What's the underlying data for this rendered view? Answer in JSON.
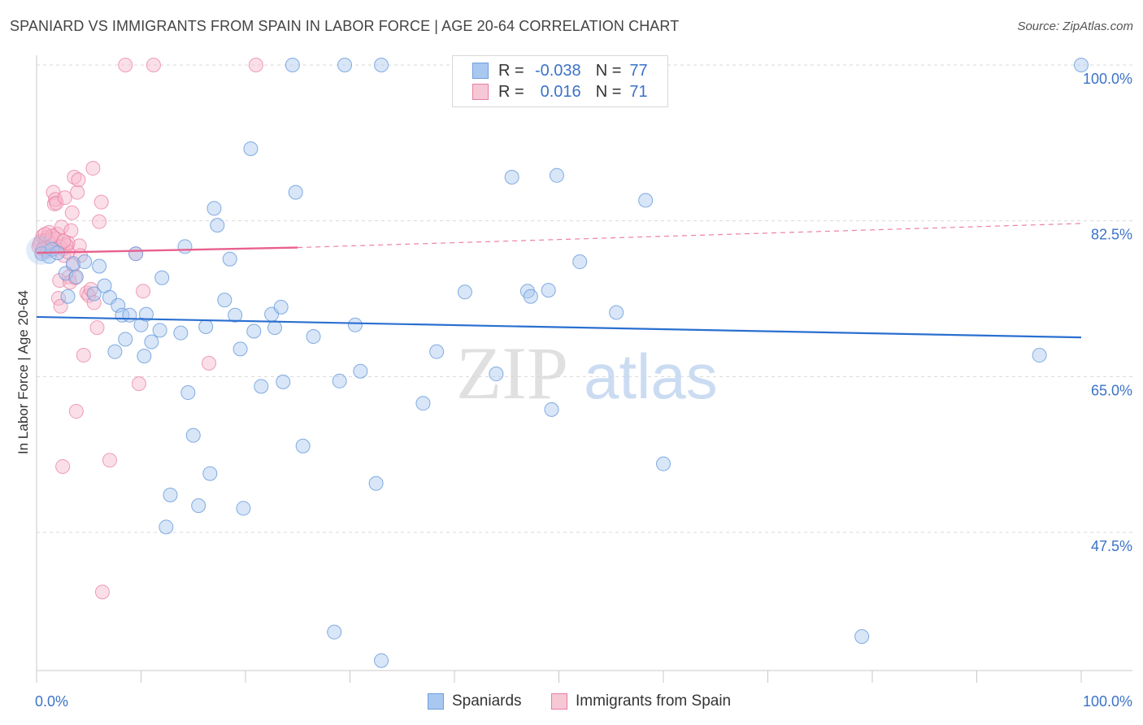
{
  "title": "SPANIARD VS IMMIGRANTS FROM SPAIN IN LABOR FORCE | AGE 20-64 CORRELATION CHART",
  "source": "Source: ZipAtlas.com",
  "watermark": {
    "zip": "ZIP",
    "atlas": "atlas"
  },
  "legend": {
    "rows": [
      {
        "r_label": "R =",
        "r_value": "-0.038",
        "n_label": "N =",
        "n_value": "77"
      },
      {
        "r_label": "R =",
        "r_value": "0.016",
        "n_label": "N =",
        "n_value": "71"
      }
    ]
  },
  "bottom_legend": {
    "series1": "Spaniards",
    "series2": "Immigrants from Spain"
  },
  "colors": {
    "blue_fill": "#a9c8f0",
    "blue_stroke": "#6d9fdc",
    "blue_line": "#2a6fd0",
    "pink_fill": "#f6b8cb",
    "pink_stroke": "#e97fa1",
    "pink_line": "#e8608e",
    "axis_label": "#3b73c8",
    "grid": "#d9d9d9"
  },
  "chart_data": {
    "type": "scatter",
    "title": "SPANIARD VS IMMIGRANTS FROM SPAIN IN LABOR FORCE | AGE 20-64 CORRELATION CHART",
    "xlabel": "",
    "ylabel": "In Labor Force | Age 20-64",
    "xlim": [
      0,
      100
    ],
    "ylim": [
      29.5,
      101.5
    ],
    "x_tick_labels": [
      {
        "value": 0,
        "label": "0.0%"
      },
      {
        "value": 100,
        "label": "100.0%"
      }
    ],
    "y_tick_labels": [
      {
        "value": 100,
        "label": "100.0%"
      },
      {
        "value": 82.5,
        "label": "82.5%"
      },
      {
        "value": 65,
        "label": "65.0%"
      },
      {
        "value": 47.5,
        "label": "47.5%"
      }
    ],
    "series": [
      {
        "name": "Spaniards",
        "r": -0.038,
        "n": 77,
        "trend": {
          "x": [
            0,
            100
          ],
          "y": [
            71.7,
            69.4
          ]
        },
        "points": [
          [
            0.5,
            78.8
          ],
          [
            1.2,
            78.5
          ],
          [
            1.5,
            79.3
          ],
          [
            2.0,
            78.9
          ],
          [
            2.8,
            76.6
          ],
          [
            3.0,
            74.0
          ],
          [
            3.5,
            77.7
          ],
          [
            3.8,
            76.2
          ],
          [
            4.6,
            77.9
          ],
          [
            5.5,
            74.3
          ],
          [
            6.0,
            77.4
          ],
          [
            6.5,
            75.2
          ],
          [
            7.0,
            73.9
          ],
          [
            7.5,
            67.8
          ],
          [
            7.8,
            73.0
          ],
          [
            8.2,
            71.9
          ],
          [
            8.5,
            69.2
          ],
          [
            8.9,
            71.9
          ],
          [
            9.5,
            78.8
          ],
          [
            10.0,
            70.8
          ],
          [
            10.3,
            67.3
          ],
          [
            10.5,
            72.0
          ],
          [
            11.0,
            68.9
          ],
          [
            11.8,
            70.2
          ],
          [
            12.0,
            76.1
          ],
          [
            12.4,
            48.1
          ],
          [
            12.8,
            51.7
          ],
          [
            13.8,
            69.9
          ],
          [
            14.2,
            79.6
          ],
          [
            14.5,
            63.2
          ],
          [
            15.0,
            58.4
          ],
          [
            15.5,
            50.5
          ],
          [
            16.2,
            70.6
          ],
          [
            16.6,
            54.1
          ],
          [
            17.0,
            83.9
          ],
          [
            17.3,
            82.0
          ],
          [
            18.0,
            73.6
          ],
          [
            18.5,
            78.2
          ],
          [
            19.0,
            71.9
          ],
          [
            19.5,
            68.1
          ],
          [
            19.8,
            50.2
          ],
          [
            20.5,
            90.6
          ],
          [
            20.8,
            70.1
          ],
          [
            21.5,
            63.9
          ],
          [
            22.5,
            72.0
          ],
          [
            22.8,
            70.5
          ],
          [
            23.4,
            72.8
          ],
          [
            23.6,
            64.4
          ],
          [
            24.8,
            85.7
          ],
          [
            25.5,
            57.2
          ],
          [
            26.5,
            69.5
          ],
          [
            28.5,
            36.3
          ],
          [
            29.0,
            64.5
          ],
          [
            30.5,
            70.8
          ],
          [
            31.0,
            65.6
          ],
          [
            32.5,
            53.0
          ],
          [
            33.0,
            33.1
          ],
          [
            37.0,
            62.0
          ],
          [
            38.3,
            67.8
          ],
          [
            41.0,
            74.5
          ],
          [
            44.0,
            65.3
          ],
          [
            45.5,
            87.4
          ],
          [
            47.0,
            74.6
          ],
          [
            47.3,
            74.0
          ],
          [
            49.0,
            74.7
          ],
          [
            49.3,
            61.3
          ],
          [
            49.8,
            87.6
          ],
          [
            52.0,
            77.9
          ],
          [
            55.5,
            72.2
          ],
          [
            58.3,
            84.8
          ],
          [
            60.0,
            55.2
          ],
          [
            79.0,
            35.8
          ],
          [
            96.0,
            67.4
          ],
          [
            100.0,
            100.0
          ],
          [
            24.5,
            100.0
          ],
          [
            29.5,
            100.0
          ],
          [
            33.0,
            100.0
          ]
        ]
      },
      {
        "name": "Immigrants from Spain",
        "r": 0.016,
        "n": 71,
        "trend": {
          "x": [
            0,
            25
          ],
          "y": [
            78.9,
            79.5
          ]
        },
        "trend_extension": {
          "x": [
            25,
            100
          ],
          "y": [
            79.5,
            82.2
          ]
        },
        "points": [
          [
            0.2,
            79.6
          ],
          [
            0.4,
            80.2
          ],
          [
            0.5,
            79.0
          ],
          [
            0.6,
            80.8
          ],
          [
            0.7,
            79.4
          ],
          [
            0.8,
            80.0
          ],
          [
            0.9,
            79.2
          ],
          [
            1.0,
            80.6
          ],
          [
            1.1,
            79.8
          ],
          [
            1.2,
            81.2
          ],
          [
            1.3,
            79.5
          ],
          [
            1.4,
            80.4
          ],
          [
            1.5,
            79.9
          ],
          [
            1.6,
            85.7
          ],
          [
            1.7,
            84.4
          ],
          [
            1.8,
            84.9
          ],
          [
            1.9,
            84.5
          ],
          [
            2.0,
            81.0
          ],
          [
            2.1,
            73.8
          ],
          [
            2.2,
            75.8
          ],
          [
            2.3,
            72.9
          ],
          [
            2.4,
            81.8
          ],
          [
            2.5,
            79.3
          ],
          [
            2.6,
            78.6
          ],
          [
            2.7,
            85.1
          ],
          [
            2.8,
            79.8
          ],
          [
            2.9,
            79.7
          ],
          [
            3.0,
            79.0
          ],
          [
            3.1,
            76.2
          ],
          [
            3.2,
            75.6
          ],
          [
            3.3,
            81.4
          ],
          [
            3.4,
            83.4
          ],
          [
            3.5,
            77.5
          ],
          [
            3.6,
            87.4
          ],
          [
            3.7,
            76.1
          ],
          [
            3.8,
            61.1
          ],
          [
            3.9,
            85.7
          ],
          [
            4.0,
            87.1
          ],
          [
            4.1,
            79.7
          ],
          [
            4.2,
            78.6
          ],
          [
            4.5,
            67.4
          ],
          [
            4.8,
            74.4
          ],
          [
            5.0,
            74.1
          ],
          [
            5.2,
            74.8
          ],
          [
            5.4,
            88.4
          ],
          [
            5.5,
            73.3
          ],
          [
            5.8,
            70.5
          ],
          [
            6.0,
            82.4
          ],
          [
            6.2,
            84.6
          ],
          [
            7.0,
            55.6
          ],
          [
            9.5,
            78.8
          ],
          [
            9.8,
            64.2
          ],
          [
            10.2,
            74.6
          ],
          [
            16.5,
            66.5
          ],
          [
            6.3,
            40.8
          ],
          [
            2.5,
            54.9
          ],
          [
            0.9,
            80.3
          ],
          [
            1.0,
            79.5
          ],
          [
            1.2,
            80.1
          ],
          [
            0.3,
            79.9
          ],
          [
            0.6,
            79.3
          ],
          [
            8.5,
            100.0
          ],
          [
            11.2,
            100.0
          ],
          [
            21.0,
            100.0
          ],
          [
            1.8,
            80.5
          ],
          [
            2.2,
            79.6
          ],
          [
            3.0,
            80.0
          ],
          [
            1.5,
            80.8
          ],
          [
            0.8,
            81.0
          ],
          [
            2.6,
            80.2
          ],
          [
            1.1,
            79.1
          ]
        ]
      }
    ],
    "legend_position": "top-center"
  }
}
